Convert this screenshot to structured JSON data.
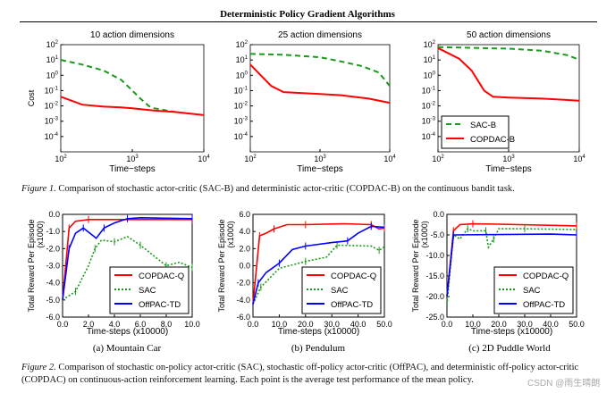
{
  "header": {
    "title": "Deterministic Policy Gradient Algorithms"
  },
  "figure1": {
    "label": "Figure 1.",
    "caption": "Comparison of stochastic actor-critic (SAC-B) and deterministic actor-critic (COPDAC-B) on the continuous bandit task."
  },
  "figure2": {
    "label": "Figure 2.",
    "caption": "Comparison of stochastic on-policy actor-critic (SAC), stochastic off-policy actor-critic (OffPAC), and deterministic off-policy actor-critic (COPDAC) on continuous-action reinforcement learning. Each point is the average test performance of the mean policy.",
    "subcaptions": [
      "(a) Mountain Car",
      "(b) Pendulum",
      "(c) 2D Puddle World"
    ]
  },
  "watermark": "CSDN @雨生晴朗",
  "colors": {
    "red": "#ff0000",
    "green": "#1a9a1a",
    "blue": "#0000ff"
  },
  "chart_data": [
    {
      "type": "line",
      "title": "10 action dimensions",
      "xlabel": "Time−steps",
      "ylabel": "Cost",
      "xscale": "log",
      "yscale": "log",
      "xlim": [
        100,
        10000
      ],
      "ylim": [
        1e-05,
        100
      ],
      "xticks": [
        "10^2",
        "10^3",
        "10^4"
      ],
      "yticks": [
        "10^2",
        "10^1",
        "10^0",
        "10^-1",
        "10^-2",
        "10^-3",
        "10^-4"
      ],
      "legend": null,
      "series": [
        {
          "name": "SAC-B",
          "style": "dashed",
          "color": "#1a9a1a",
          "x": [
            100,
            200,
            400,
            700,
            1000,
            1300,
            1700,
            2000,
            2500,
            3000,
            4000
          ],
          "y": [
            10,
            5,
            2,
            0.5,
            0.1,
            0.03,
            0.01,
            0.007,
            0.006,
            0.005,
            0.004
          ]
        },
        {
          "name": "COPDAC-B",
          "style": "solid",
          "color": "#ff0000",
          "x": [
            100,
            200,
            400,
            700,
            1000,
            2000,
            4000,
            7000,
            10000
          ],
          "y": [
            0.04,
            0.012,
            0.009,
            0.008,
            0.007,
            0.005,
            0.004,
            0.003,
            0.0025
          ]
        }
      ]
    },
    {
      "type": "line",
      "title": "25 action dimensions",
      "xlabel": "Time−steps",
      "ylabel": "",
      "xscale": "log",
      "yscale": "log",
      "xlim": [
        100,
        10000
      ],
      "ylim": [
        1e-05,
        100
      ],
      "xticks": [
        "10^2",
        "10^3",
        "10^4"
      ],
      "yticks": [
        "10^2",
        "10^1",
        "10^0",
        "10^-1",
        "10^-2",
        "10^-3",
        "10^-4"
      ],
      "legend": null,
      "series": [
        {
          "name": "SAC-B",
          "style": "dashed",
          "color": "#1a9a1a",
          "x": [
            100,
            300,
            1000,
            2000,
            4000,
            7000,
            10000
          ],
          "y": [
            25,
            22,
            15,
            8,
            4,
            1.5,
            0.2
          ]
        },
        {
          "name": "COPDAC-B",
          "style": "solid",
          "color": "#ff0000",
          "x": [
            100,
            200,
            300,
            1000,
            2000,
            5000,
            10000
          ],
          "y": [
            5,
            0.2,
            0.08,
            0.06,
            0.05,
            0.03,
            0.016
          ]
        }
      ]
    },
    {
      "type": "line",
      "title": "50 action dimensions",
      "xlabel": "Time−steps",
      "ylabel": "",
      "xscale": "log",
      "yscale": "log",
      "xlim": [
        100,
        10000
      ],
      "ylim": [
        1e-05,
        100
      ],
      "xticks": [
        "10^2",
        "10^3",
        "10^4"
      ],
      "yticks": [
        "10^2",
        "10^1",
        "10^0",
        "10^-1",
        "10^-2",
        "10^-3",
        "10^-4"
      ],
      "legend": "bottom-left",
      "series": [
        {
          "name": "SAC-B",
          "style": "dashed",
          "color": "#1a9a1a",
          "x": [
            100,
            1000,
            3000,
            7000,
            10000
          ],
          "y": [
            70,
            55,
            40,
            20,
            10
          ]
        },
        {
          "name": "COPDAC-B",
          "style": "solid",
          "color": "#ff0000",
          "x": [
            100,
            200,
            300,
            450,
            600,
            1000,
            3000,
            10000
          ],
          "y": [
            60,
            12,
            2,
            0.1,
            0.04,
            0.035,
            0.03,
            0.022
          ]
        }
      ]
    },
    {
      "type": "line",
      "title": "",
      "xlabel": "Time-steps (x10000)",
      "ylabel": "Total Reward Per Episode (x1000)",
      "xlim": [
        0,
        10
      ],
      "ylim": [
        -6,
        0
      ],
      "xticks": [
        "0.0",
        "2.0",
        "4.0",
        "6.0",
        "8.0",
        "10.0"
      ],
      "yticks": [
        "0.0",
        "-1.0",
        "-2.0",
        "-3.0",
        "-4.0",
        "-5.0",
        "-6.0"
      ],
      "legend": "bottom-right",
      "series": [
        {
          "name": "COPDAC-Q",
          "style": "solid",
          "color": "#ff0000",
          "x": [
            0,
            0.5,
            1,
            2,
            4,
            10
          ],
          "y": [
            -5,
            -0.8,
            -0.4,
            -0.3,
            -0.3,
            -0.3
          ]
        },
        {
          "name": "SAC",
          "style": "dotted",
          "color": "#1a9a1a",
          "x": [
            0,
            1,
            2,
            2.5,
            3,
            4,
            5,
            6,
            7,
            8,
            9,
            10
          ],
          "y": [
            -5,
            -4.5,
            -3,
            -2,
            -1.5,
            -1.6,
            -1.3,
            -1.8,
            -2.4,
            -3.0,
            -2.8,
            -3.1
          ]
        },
        {
          "name": "OffPAC-TD",
          "style": "solid",
          "color": "#0000ff",
          "x": [
            0,
            0.5,
            1,
            1.6,
            2.6,
            3.2,
            4,
            5,
            6,
            10
          ],
          "y": [
            -5,
            -2,
            -1.1,
            -0.8,
            -1.4,
            -0.8,
            -0.5,
            -0.25,
            -0.2,
            -0.25
          ]
        }
      ]
    },
    {
      "type": "line",
      "title": "",
      "xlabel": "Time-steps (x10000)",
      "ylabel": "Total Reward Per Episode (x1000)",
      "xlim": [
        0,
        50
      ],
      "ylim": [
        -6,
        6
      ],
      "xticks": [
        "0.0",
        "10.0",
        "20.0",
        "30.0",
        "40.0",
        "50.0"
      ],
      "yticks": [
        "6.0",
        "4.0",
        "2.0",
        "0.0",
        "-2.0",
        "-4.0",
        "-6.0"
      ],
      "legend": "bottom-right",
      "series": [
        {
          "name": "COPDAC-Q",
          "style": "solid",
          "color": "#ff0000",
          "x": [
            0,
            2.5,
            5,
            8,
            13,
            20,
            35,
            45,
            48,
            50
          ],
          "y": [
            -4.5,
            3.5,
            3.8,
            4.3,
            4.8,
            4.8,
            4.9,
            4.8,
            4.3,
            4.4
          ]
        },
        {
          "name": "SAC",
          "style": "dotted",
          "color": "#1a9a1a",
          "x": [
            0,
            3,
            10,
            20,
            28,
            32,
            45,
            48,
            50
          ],
          "y": [
            -4.5,
            -2.5,
            -0.3,
            0.5,
            1,
            2.4,
            2.3,
            1.8,
            2.2
          ]
        },
        {
          "name": "OffPAC-TD",
          "style": "solid",
          "color": "#0000ff",
          "x": [
            0,
            2,
            5,
            10,
            15,
            20,
            30,
            36,
            40,
            45,
            50
          ],
          "y": [
            -4.5,
            -2,
            -0.8,
            0.3,
            1.9,
            2.3,
            2.7,
            2.9,
            3.8,
            4.6,
            4.5
          ]
        }
      ]
    },
    {
      "type": "line",
      "title": "",
      "xlabel": "Time-steps (x10000)",
      "ylabel": "Total Reward Per Episode (x1000)",
      "xlim": [
        0,
        50
      ],
      "ylim": [
        -25,
        0
      ],
      "xticks": [
        "0.0",
        "10.0",
        "20.0",
        "30.0",
        "40.0",
        "50.0"
      ],
      "yticks": [
        "0.0",
        "-5.0",
        "-10.0",
        "-15.0",
        "-20.0",
        "-25.0"
      ],
      "legend": "bottom-right",
      "series": [
        {
          "name": "COPDAC-Q",
          "style": "solid",
          "color": "#ff0000",
          "x": [
            0,
            2.5,
            5,
            10,
            20,
            50
          ],
          "y": [
            -20,
            -4,
            -2.5,
            -2.3,
            -2.4,
            -2.8
          ]
        },
        {
          "name": "SAC",
          "style": "dotted",
          "color": "#1a9a1a",
          "x": [
            0,
            2.5,
            5,
            8,
            10,
            15,
            16,
            18,
            20,
            30,
            50
          ],
          "y": [
            -22,
            -5,
            -6,
            -3.5,
            -4,
            -4,
            -8,
            -6,
            -3.5,
            -3.5,
            -3.7
          ]
        },
        {
          "name": "OffPAC-TD",
          "style": "solid",
          "color": "#0000ff",
          "x": [
            0,
            2.5,
            40,
            50
          ],
          "y": [
            -20,
            -5,
            -4.8,
            -5
          ]
        }
      ]
    }
  ]
}
